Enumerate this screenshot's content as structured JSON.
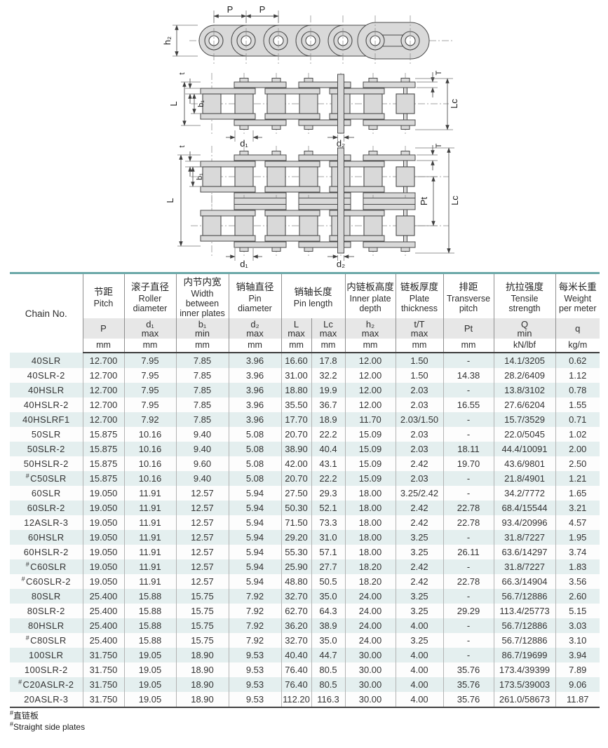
{
  "diagram": {
    "labels": {
      "p_a": "P",
      "p_b": "P",
      "h2": "h₂",
      "s_t": "t",
      "s_T": "T",
      "s_L": "L",
      "s_b1": "b₁",
      "s_Lc": "Lc",
      "s_d1": "d₁",
      "s_d2": "d₂",
      "d_t": "t",
      "d_T": "T",
      "d_L": "L",
      "d_b1": "b₁",
      "d_Pt": "Pt",
      "d_Lc": "Lc",
      "d_d1": "d₁",
      "d_d2": "d₂"
    }
  },
  "table": {
    "chain_header": "Chain No.",
    "columns": [
      {
        "cn": "节距",
        "en": "Pitch",
        "sym": "P",
        "qual": "",
        "unit": "mm"
      },
      {
        "cn": "滚子直径",
        "en": "Roller diameter",
        "sym": "d₁",
        "qual": "max",
        "unit": "mm"
      },
      {
        "cn": "内节内宽",
        "en": "Width between inner plates",
        "sym": "b₁",
        "qual": "min",
        "unit": "mm"
      },
      {
        "cn": "销轴直径",
        "en": "Pin diameter",
        "sym": "d₂",
        "qual": "max",
        "unit": "mm"
      },
      {
        "cn": "销轴长度",
        "en": "Pin length",
        "subs": [
          {
            "sym": "L",
            "qual": "max",
            "unit": "mm"
          },
          {
            "sym": "Lc",
            "qual": "max",
            "unit": "mm"
          }
        ]
      },
      {
        "cn": "内链板高度",
        "en": "Inner plate depth",
        "sym": "h₂",
        "qual": "max",
        "unit": "mm"
      },
      {
        "cn": "链板厚度",
        "en": "Plate thickness",
        "sym": "t/T",
        "qual": "max",
        "unit": "mm"
      },
      {
        "cn": "排距",
        "en": "Transverse pitch",
        "sym": "Pt",
        "qual": "",
        "unit": "mm"
      },
      {
        "cn": "抗拉强度",
        "en": "Tensile strength",
        "sym": "Q",
        "qual": "min",
        "unit": "kN/lbf"
      },
      {
        "cn": "每米长重",
        "en": "Weight per meter",
        "sym": "q",
        "qual": "",
        "unit": "kg/m"
      }
    ],
    "rows": [
      [
        "40SLR",
        "12.700",
        "7.95",
        "7.85",
        "3.96",
        "16.60",
        "17.8",
        "12.00",
        "1.50",
        "-",
        "14.1/3205",
        "0.62"
      ],
      [
        "40SLR-2",
        "12.700",
        "7.95",
        "7.85",
        "3.96",
        "31.00",
        "32.2",
        "12.00",
        "1.50",
        "14.38",
        "28.2/6409",
        "1.12"
      ],
      [
        "40HSLR",
        "12.700",
        "7.95",
        "7.85",
        "3.96",
        "18.80",
        "19.9",
        "12.00",
        "2.03",
        "-",
        "13.8/3102",
        "0.78"
      ],
      [
        "40HSLR-2",
        "12.700",
        "7.95",
        "7.85",
        "3.96",
        "35.50",
        "36.7",
        "12.00",
        "2.03",
        "16.55",
        "27.6/6204",
        "1.55"
      ],
      [
        "40HSLRF1",
        "12.700",
        "7.92",
        "7.85",
        "3.96",
        "17.70",
        "18.9",
        "11.70",
        "2.03/1.50",
        "-",
        "15.7/3529",
        "0.71"
      ],
      [
        "50SLR",
        "15.875",
        "10.16",
        "9.40",
        "5.08",
        "20.70",
        "22.2",
        "15.09",
        "2.03",
        "-",
        "22.0/5045",
        "1.02"
      ],
      [
        "50SLR-2",
        "15.875",
        "10.16",
        "9.40",
        "5.08",
        "38.90",
        "40.4",
        "15.09",
        "2.03",
        "18.11",
        "44.4/10091",
        "2.00"
      ],
      [
        "50HSLR-2",
        "15.875",
        "10.16",
        "9.60",
        "5.08",
        "42.00",
        "43.1",
        "15.09",
        "2.42",
        "19.70",
        "43.6/9801",
        "2.50"
      ],
      [
        "#C50SLR",
        "15.875",
        "10.16",
        "9.40",
        "5.08",
        "20.70",
        "22.2",
        "15.09",
        "2.03",
        "-",
        "21.8/4901",
        "1.21"
      ],
      [
        "60SLR",
        "19.050",
        "11.91",
        "12.57",
        "5.94",
        "27.50",
        "29.3",
        "18.00",
        "3.25/2.42",
        "-",
        "34.2/7772",
        "1.65"
      ],
      [
        "60SLR-2",
        "19.050",
        "11.91",
        "12.57",
        "5.94",
        "50.30",
        "52.1",
        "18.00",
        "2.42",
        "22.78",
        "68.4/15544",
        "3.21"
      ],
      [
        "12ASLR-3",
        "19.050",
        "11.91",
        "12.57",
        "5.94",
        "71.50",
        "73.3",
        "18.00",
        "2.42",
        "22.78",
        "93.4/20996",
        "4.57"
      ],
      [
        "60HSLR",
        "19.050",
        "11.91",
        "12.57",
        "5.94",
        "29.20",
        "31.0",
        "18.00",
        "3.25",
        "-",
        "31.8/7227",
        "1.95"
      ],
      [
        "60HSLR-2",
        "19.050",
        "11.91",
        "12.57",
        "5.94",
        "55.30",
        "57.1",
        "18.00",
        "3.25",
        "26.11",
        "63.6/14297",
        "3.74"
      ],
      [
        "#C60SLR",
        "19.050",
        "11.91",
        "12.57",
        "5.94",
        "25.90",
        "27.7",
        "18.20",
        "2.42",
        "-",
        "31.8/7227",
        "1.83"
      ],
      [
        "#C60SLR-2",
        "19.050",
        "11.91",
        "12.57",
        "5.94",
        "48.80",
        "50.5",
        "18.20",
        "2.42",
        "22.78",
        "66.3/14904",
        "3.56"
      ],
      [
        "80SLR",
        "25.400",
        "15.88",
        "15.75",
        "7.92",
        "32.70",
        "35.0",
        "24.00",
        "3.25",
        "-",
        "56.7/12886",
        "2.60"
      ],
      [
        "80SLR-2",
        "25.400",
        "15.88",
        "15.75",
        "7.92",
        "62.70",
        "64.3",
        "24.00",
        "3.25",
        "29.29",
        "113.4/25773",
        "5.15"
      ],
      [
        "80HSLR",
        "25.400",
        "15.88",
        "15.75",
        "7.92",
        "36.20",
        "38.9",
        "24.00",
        "4.00",
        "-",
        "56.7/12886",
        "3.03"
      ],
      [
        "#C80SLR",
        "25.400",
        "15.88",
        "15.75",
        "7.92",
        "32.70",
        "35.0",
        "24.00",
        "3.25",
        "-",
        "56.7/12886",
        "3.10"
      ],
      [
        "100SLR",
        "31.750",
        "19.05",
        "18.90",
        "9.53",
        "40.40",
        "44.7",
        "30.00",
        "4.00",
        "-",
        "86.7/19699",
        "3.94"
      ],
      [
        "100SLR-2",
        "31.750",
        "19.05",
        "18.90",
        "9.53",
        "76.40",
        "80.5",
        "30.00",
        "4.00",
        "35.76",
        "173.4/39399",
        "7.89"
      ],
      [
        "#C20ASLR-2",
        "31.750",
        "19.05",
        "18.90",
        "9.53",
        "76.40",
        "80.5",
        "30.00",
        "4.00",
        "35.76",
        "173.5/39003",
        "9.06"
      ],
      [
        "20ASLR-3",
        "31.750",
        "19.05",
        "18.90",
        "9.53",
        "112.20",
        "116.3",
        "30.00",
        "4.00",
        "35.76",
        "261.0/58673",
        "11.87"
      ]
    ]
  },
  "footnote": {
    "marker": "#",
    "cn": "直链板",
    "en": "Straight side plates"
  },
  "colors": {
    "accent_teal": "#6BA8A8",
    "row_stripe": "#E4EFEF",
    "subheader_gray": "#E7E7E7",
    "chain_fill": "#D9D9D9"
  }
}
